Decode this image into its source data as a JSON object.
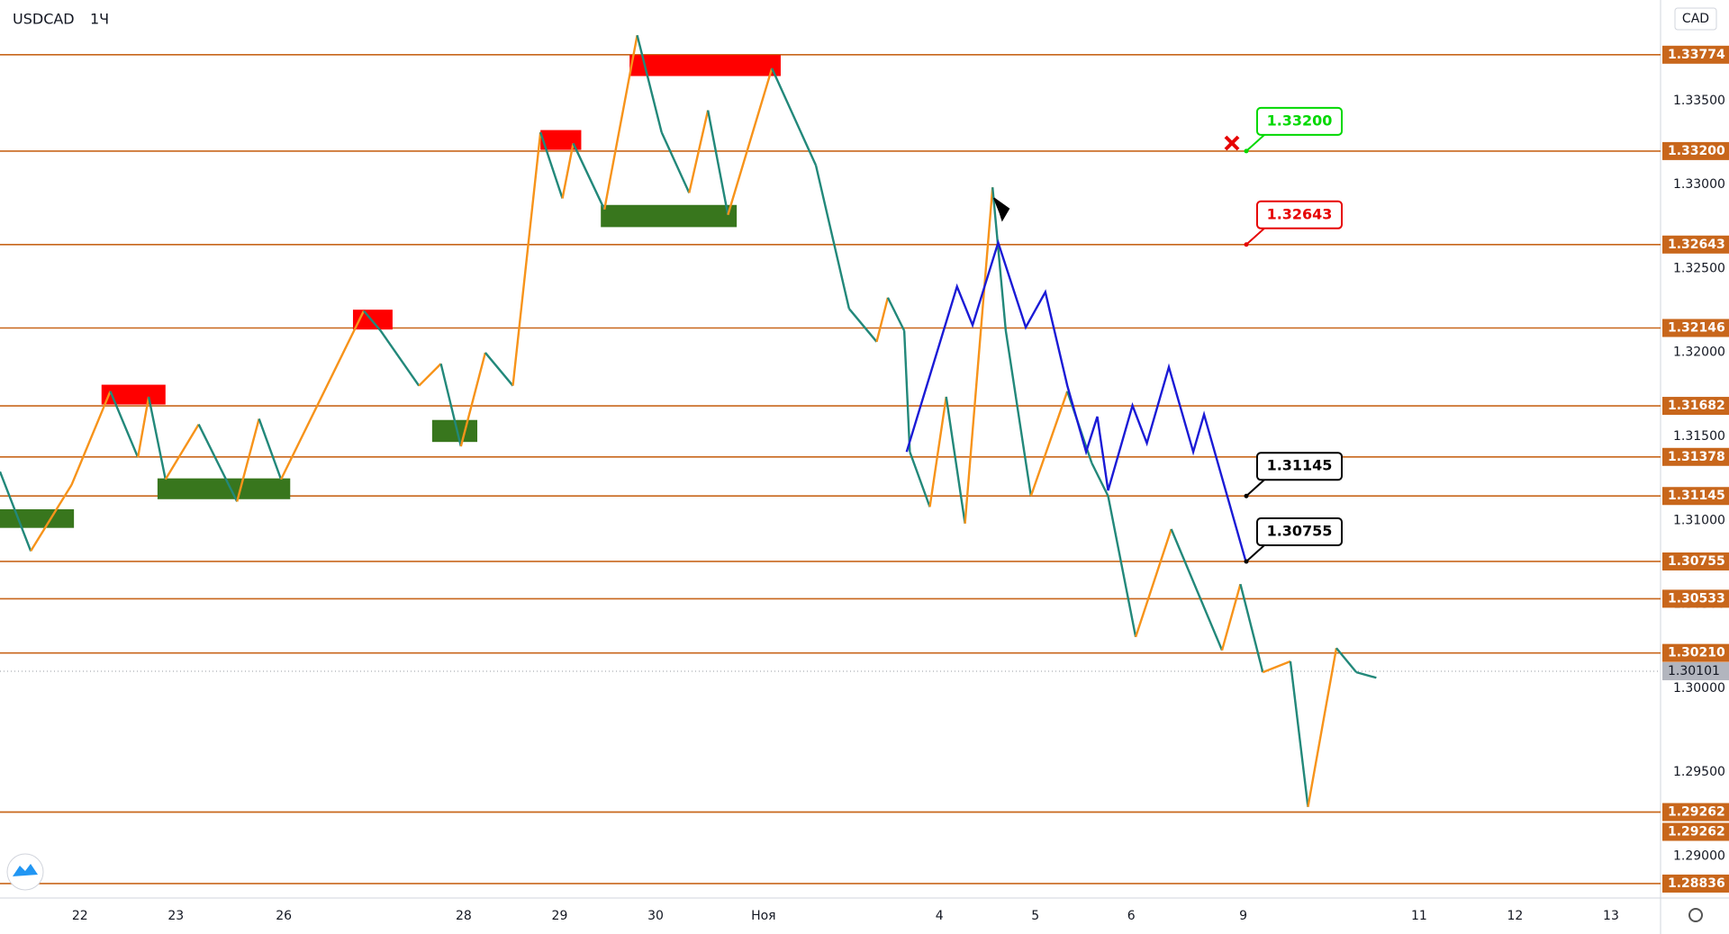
{
  "header": {
    "symbol": "USDCAD",
    "interval": "1Ч"
  },
  "chart_data": {
    "type": "line",
    "currency_label": "CAD",
    "xlim": [
      0,
      415.4
    ],
    "ylim": [
      1.2875,
      1.341
    ],
    "xticks": [
      {
        "value": 20,
        "label": "22"
      },
      {
        "value": 44,
        "label": "23"
      },
      {
        "value": 71,
        "label": "26"
      },
      {
        "value": 116,
        "label": "28"
      },
      {
        "value": 140,
        "label": "29"
      },
      {
        "value": 164,
        "label": "30"
      },
      {
        "value": 191,
        "label": "Ноя"
      },
      {
        "value": 235,
        "label": "4"
      },
      {
        "value": 259,
        "label": "5"
      },
      {
        "value": 283,
        "label": "6"
      },
      {
        "value": 311,
        "label": "9"
      },
      {
        "value": 355,
        "label": "11"
      },
      {
        "value": 379,
        "label": "12"
      },
      {
        "value": 403,
        "label": "13"
      }
    ],
    "yticks": [
      {
        "value": 1.29,
        "label": "1.29000"
      },
      {
        "value": 1.295,
        "label": "1.29500"
      },
      {
        "value": 1.3,
        "label": "1.30000"
      },
      {
        "value": 1.305,
        "label": "1.30500"
      },
      {
        "value": 1.31,
        "label": "1.31000"
      },
      {
        "value": 1.315,
        "label": "1.31500"
      },
      {
        "value": 1.32,
        "label": "1.32000"
      },
      {
        "value": 1.325,
        "label": "1.32500"
      },
      {
        "value": 1.33,
        "label": "1.33000"
      },
      {
        "value": 1.335,
        "label": "1.33500"
      }
    ],
    "levels": [
      {
        "value": 1.33774,
        "label": "1.33774"
      },
      {
        "value": 1.332,
        "label": "1.33200"
      },
      {
        "value": 1.32643,
        "label": "1.32643"
      },
      {
        "value": 1.32146,
        "label": "1.32146"
      },
      {
        "value": 1.31682,
        "label": "1.31682"
      },
      {
        "value": 1.31378,
        "label": "1.31378"
      },
      {
        "value": 1.31145,
        "label": "1.31145"
      },
      {
        "value": 1.30755,
        "label": "1.30755"
      },
      {
        "value": 1.30533,
        "label": "1.30533"
      },
      {
        "value": 1.3021,
        "label": "1.30210"
      },
      {
        "value": 1.29262,
        "label": "1.29262"
      },
      {
        "value": 1.29262,
        "label": "1.29262"
      },
      {
        "value": 1.28836,
        "label": "1.28836"
      }
    ],
    "level_color": "#c8661b",
    "last_price": {
      "value": 1.30101,
      "label": "1.30101"
    },
    "zones": [
      {
        "x": [
          25.4,
          41.4
        ],
        "y": [
          1.31808,
          1.3169
        ],
        "color": "#ff0000"
      },
      {
        "x": [
          88.3,
          98.2
        ],
        "y": [
          1.32255,
          1.32137
        ],
        "color": "#ff0000"
      },
      {
        "x": [
          135.2,
          145.4
        ],
        "y": [
          1.33325,
          1.33207
        ],
        "color": "#ff0000"
      },
      {
        "x": [
          157.5,
          195.3
        ],
        "y": [
          1.33772,
          1.33647
        ],
        "color": "#ff0000"
      },
      {
        "x": [
          0,
          18.5
        ],
        "y": [
          1.31066,
          1.30955
        ],
        "color": "#38761d"
      },
      {
        "x": [
          39.4,
          72.6
        ],
        "y": [
          1.3125,
          1.31126
        ],
        "color": "#38761d"
      },
      {
        "x": [
          108.1,
          119.4
        ],
        "y": [
          1.31598,
          1.31467
        ],
        "color": "#38761d"
      },
      {
        "x": [
          150.3,
          184.3
        ],
        "y": [
          1.32879,
          1.32747
        ],
        "color": "#38761d"
      }
    ],
    "series": [
      {
        "name": "USDCAD",
        "up_color": "#f7931a",
        "down_color": "#22887a",
        "x": [
          0,
          7.7,
          17.9,
          27.6,
          34.5,
          37.2,
          41.4,
          49.7,
          59.3,
          64.8,
          70.3,
          91.0,
          95.2,
          104.8,
          110.3,
          115.3,
          121.4,
          128.3,
          135.2,
          140.7,
          143.4,
          151.2,
          159.4,
          165.5,
          172.4,
          177.1,
          182.1,
          193.1,
          204.1,
          212.4,
          219.3,
          222.1,
          226.2,
          227.6,
          232.6,
          236.7,
          241.4,
          248.3,
          251.6,
          257.9,
          267.0,
          273.1,
          277.2,
          284.1,
          293.0,
          305.7,
          310.3,
          315.9,
          322.8,
          327.2,
          334.3,
          339.3,
          344.3
        ],
        "values": [
          1.3129,
          1.30817,
          1.31211,
          1.31769,
          1.31375,
          1.31736,
          1.31244,
          1.31572,
          1.31112,
          1.31605,
          1.31244,
          1.32248,
          1.3213,
          1.31802,
          1.31933,
          1.31441,
          1.31999,
          1.31802,
          1.33312,
          1.32918,
          1.33246,
          1.32852,
          1.3389,
          1.33312,
          1.32951,
          1.33443,
          1.3282,
          1.33693,
          1.33115,
          1.32261,
          1.32064,
          1.32327,
          1.3213,
          1.31408,
          1.3108,
          1.31736,
          1.30981,
          1.32984,
          1.3213,
          1.31145,
          1.31769,
          1.31342,
          1.31145,
          1.30305,
          1.30948,
          1.30226,
          1.3062,
          1.30095,
          1.3016,
          1.29293,
          1.30239,
          1.30095,
          1.30062
        ]
      },
      {
        "name": "Projection",
        "color": "#1a1ad6",
        "x": [
          226.8,
          239.4,
          243.3,
          249.7,
          256.6,
          261.5,
          267.0,
          271.7,
          274.5,
          277.2,
          283.3,
          286.9,
          292.4,
          298.5,
          301.2,
          311.7
        ],
        "values": [
          1.31408,
          1.32393,
          1.32163,
          1.32655,
          1.3215,
          1.3236,
          1.31802,
          1.31408,
          1.31618,
          1.31178,
          1.31684,
          1.3146,
          1.31913,
          1.31408,
          1.31631,
          1.30751
        ]
      }
    ],
    "annotations": [
      {
        "value": 1.332,
        "label": "1.33200",
        "color": "#00d800"
      },
      {
        "value": 1.32643,
        "label": "1.32643",
        "color": "#e60000"
      },
      {
        "value": 1.31145,
        "label": "1.31145",
        "color": "#000000"
      },
      {
        "value": 1.30755,
        "label": "1.30755",
        "color": "#000000"
      }
    ]
  }
}
